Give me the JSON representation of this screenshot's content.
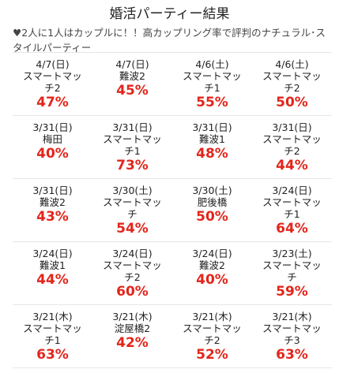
{
  "header": {
    "title": "婚活パーティー結果",
    "heart": "♥",
    "subtitle": "2人に1人はカップルに！！高カップリング率で評判のナチュラル･スタイルパーティー"
  },
  "accent_color": "#e3251b",
  "results": [
    {
      "date": "4/7(日)",
      "venue": "スマートマッチ2",
      "rate": "47%"
    },
    {
      "date": "4/7(日)",
      "venue": "難波2",
      "rate": "45%"
    },
    {
      "date": "4/6(土)",
      "venue": "スマートマッチ1",
      "rate": "55%"
    },
    {
      "date": "4/6(土)",
      "venue": "スマートマッチ2",
      "rate": "50%"
    },
    {
      "date": "3/31(日)",
      "venue": "梅田",
      "rate": "40%"
    },
    {
      "date": "3/31(日)",
      "venue": "スマートマッチ1",
      "rate": "73%"
    },
    {
      "date": "3/31(日)",
      "venue": "難波1",
      "rate": "48%"
    },
    {
      "date": "3/31(日)",
      "venue": "スマートマッチ2",
      "rate": "44%"
    },
    {
      "date": "3/31(日)",
      "venue": "難波2",
      "rate": "43%"
    },
    {
      "date": "3/30(土)",
      "venue": "スマートマッチ",
      "rate": "54%"
    },
    {
      "date": "3/30(土)",
      "venue": "肥後橋",
      "rate": "50%"
    },
    {
      "date": "3/24(日)",
      "venue": "スマートマッチ1",
      "rate": "64%"
    },
    {
      "date": "3/24(日)",
      "venue": "難波1",
      "rate": "44%"
    },
    {
      "date": "3/24(日)",
      "venue": "スマートマッチ2",
      "rate": "60%"
    },
    {
      "date": "3/24(日)",
      "venue": "難波2",
      "rate": "40%"
    },
    {
      "date": "3/23(土)",
      "venue": "スマートマッチ",
      "rate": "59%"
    },
    {
      "date": "3/21(木)",
      "venue": "スマートマッチ1",
      "rate": "63%"
    },
    {
      "date": "3/21(木)",
      "venue": "淀屋橋2",
      "rate": "42%"
    },
    {
      "date": "3/21(木)",
      "venue": "スマートマッチ2",
      "rate": "52%"
    },
    {
      "date": "3/21(木)",
      "venue": "スマートマッチ3",
      "rate": "63%"
    }
  ]
}
